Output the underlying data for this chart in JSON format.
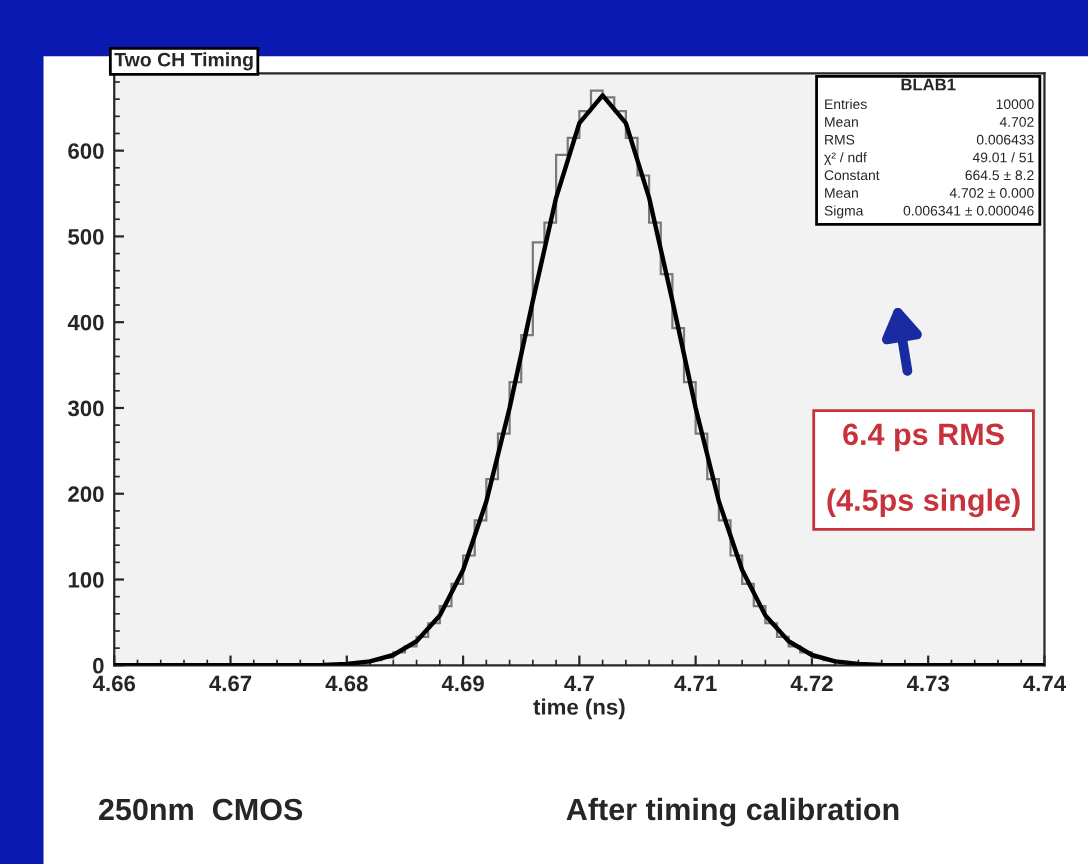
{
  "chart_data": {
    "type": "histogram",
    "title": "Two CH Timing",
    "xlabel": "time (ns)",
    "bins": [
      4.68,
      4.681,
      4.682,
      4.683,
      4.684,
      4.685,
      4.686,
      4.687,
      4.688,
      4.689,
      4.69,
      4.691,
      4.692,
      4.693,
      4.694,
      4.695,
      4.696,
      4.697,
      4.698,
      4.699,
      4.7,
      4.701,
      4.702,
      4.703,
      4.704,
      4.705,
      4.706,
      4.707,
      4.708,
      4.709,
      4.71,
      4.711,
      4.712,
      4.713,
      4.714,
      4.715,
      4.716,
      4.717,
      4.718,
      4.719,
      4.72,
      4.721,
      4.722,
      4.723,
      4.724,
      4.725
    ],
    "values": [
      2,
      4,
      6,
      9,
      15,
      22,
      33,
      49,
      69,
      95,
      128,
      169,
      217,
      270,
      330,
      385,
      493,
      516,
      595,
      615,
      646,
      670,
      662,
      646,
      615,
      571,
      516,
      456,
      393,
      330,
      270,
      217,
      169,
      128,
      95,
      69,
      49,
      33,
      22,
      15,
      9,
      6,
      4,
      2,
      1
    ],
    "color": "#7a7a7a",
    "series": [
      {
        "type": "line",
        "color": "#000000",
        "x": [
          4.66,
          4.676,
          4.678,
          4.68,
          4.682,
          4.684,
          4.686,
          4.688,
          4.69,
          4.692,
          4.694,
          4.696,
          4.698,
          4.7,
          4.702,
          4.704,
          4.706,
          4.708,
          4.71,
          4.712,
          4.714,
          4.716,
          4.718,
          4.72,
          4.722,
          4.724,
          4.726,
          4.728,
          4.74
        ],
        "values": [
          0,
          0,
          0.5,
          1.6,
          4.6,
          12,
          28,
          58,
          111,
          191,
          300,
          425,
          545,
          632,
          664.5,
          632,
          545,
          425,
          300,
          191,
          111,
          58,
          28,
          12,
          4.6,
          1.6,
          0.5,
          0,
          0
        ]
      }
    ],
    "xlim": [
      4.66,
      4.74
    ],
    "xticks": [
      4.66,
      4.67,
      4.68,
      4.69,
      4.7,
      4.71,
      4.72,
      4.73,
      4.74
    ],
    "ylim": [
      0,
      690
    ],
    "yticks": [
      0,
      100,
      200,
      300,
      400,
      500,
      600
    ],
    "grid": false,
    "annotations": [
      "BLAB1",
      "Entries",
      "10000",
      "Mean",
      "4.702",
      "RMS",
      "0.006433",
      "χ² / ndf",
      "49.01 / 51",
      "Constant",
      "664.5 ± 8.2",
      "Mean",
      "4.702 ± 0.000",
      "Sigma",
      "0.006341 ± 0.000046",
      "6.4 ps RMS",
      "(4.5ps single)",
      "250nm  CMOS",
      "After timing calibration"
    ]
  }
}
